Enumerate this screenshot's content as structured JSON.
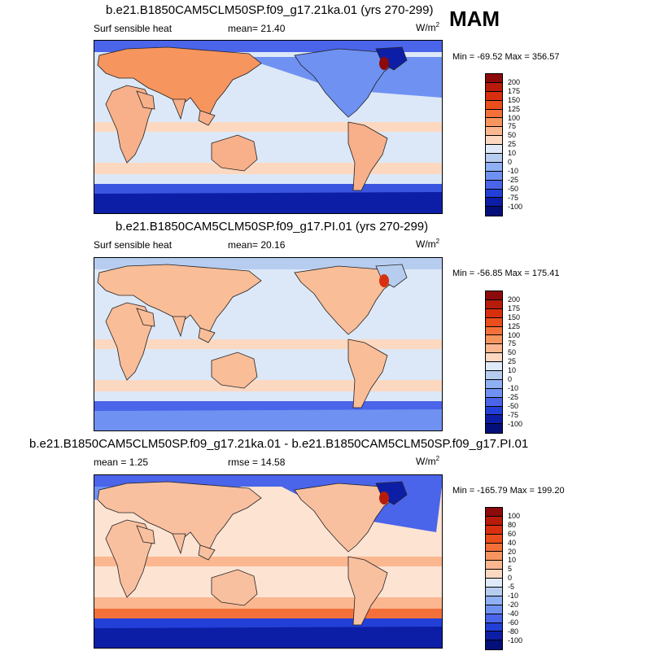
{
  "season": "MAM",
  "panels": [
    {
      "title": "b.e21.B1850CAM5CLM50SP.f09_g17.21ka.01 (yrs 270-299)",
      "left_label": "Surf sensible heat",
      "center_label": "mean=  21.40",
      "units": "W/m",
      "units_sup": "2",
      "minmax": "Min = -69.52 Max = 356.57",
      "kind": "lgm"
    },
    {
      "title": "b.e21.B1850CAM5CLM50SP.f09_g17.PI.01 (yrs 270-299)",
      "left_label": "Surf sensible heat",
      "center_label": "mean=  20.16",
      "units": "W/m",
      "units_sup": "2",
      "minmax": "Min = -56.85 Max = 175.41",
      "kind": "pi"
    },
    {
      "title": "b.e21.B1850CAM5CLM50SP.f09_g17.21ka.01 - b.e21.B1850CAM5CLM50SP.f09_g17.PI.01",
      "left_label": "mean =   1.25",
      "center_label": "rmse =  14.58",
      "units": "W/m",
      "units_sup": "2",
      "minmax": "Min = -165.79 Max = 199.20",
      "kind": "diff"
    }
  ],
  "colorbars": {
    "abs": {
      "labels": [
        "200",
        "175",
        "150",
        "125",
        "100",
        "75",
        "50",
        "25",
        "10",
        "0",
        "-10",
        "-25",
        "-50",
        "-75",
        "-100"
      ],
      "colors": [
        "#8c0a0a",
        "#b71c0a",
        "#d8300f",
        "#ea4e1c",
        "#f4703a",
        "#f7955f",
        "#fbb790",
        "#fdd8c1",
        "#dfe9f7",
        "#b7cdf0",
        "#8fb0f3",
        "#6f91f2",
        "#4a64ea",
        "#2240d8",
        "#0d1ea6",
        "#050f7a"
      ]
    },
    "diff": {
      "labels": [
        "100",
        "80",
        "60",
        "40",
        "20",
        "10",
        "5",
        "0",
        "-5",
        "-10",
        "-20",
        "-40",
        "-60",
        "-80",
        "-100"
      ],
      "colors": [
        "#8c0a0a",
        "#b71c0a",
        "#d8300f",
        "#ea4e1c",
        "#f4703a",
        "#f7955f",
        "#fbb790",
        "#fdd8c1",
        "#dfe9f7",
        "#b7cdf0",
        "#8fb0f3",
        "#6f91f2",
        "#4a64ea",
        "#2240d8",
        "#0d1ea6",
        "#050f7a"
      ]
    }
  },
  "chart_data": [
    {
      "type": "heatmap",
      "title": "b.e21.B1850CAM5CLM50SP.f09_g17.21ka.01 (yrs 270-299)",
      "variable": "Surf sensible heat",
      "units": "W/m2",
      "season": "MAM",
      "mean": 21.4,
      "min": -69.52,
      "max": 356.57,
      "levels": [
        -100,
        -75,
        -50,
        -25,
        -10,
        0,
        10,
        25,
        50,
        75,
        100,
        125,
        150,
        175,
        200
      ]
    },
    {
      "type": "heatmap",
      "title": "b.e21.B1850CAM5CLM50SP.f09_g17.PI.01 (yrs 270-299)",
      "variable": "Surf sensible heat",
      "units": "W/m2",
      "season": "MAM",
      "mean": 20.16,
      "min": -56.85,
      "max": 175.41,
      "levels": [
        -100,
        -75,
        -50,
        -25,
        -10,
        0,
        10,
        25,
        50,
        75,
        100,
        125,
        150,
        175,
        200
      ]
    },
    {
      "type": "heatmap",
      "title": "b.e21.B1850CAM5CLM50SP.f09_g17.21ka.01 - b.e21.B1850CAM5CLM50SP.f09_g17.PI.01",
      "units": "W/m2",
      "season": "MAM",
      "mean": 1.25,
      "rmse": 14.58,
      "min": -165.79,
      "max": 199.2,
      "levels": [
        -100,
        -80,
        -60,
        -40,
        -20,
        -10,
        -5,
        0,
        5,
        10,
        20,
        40,
        60,
        80,
        100
      ]
    }
  ]
}
